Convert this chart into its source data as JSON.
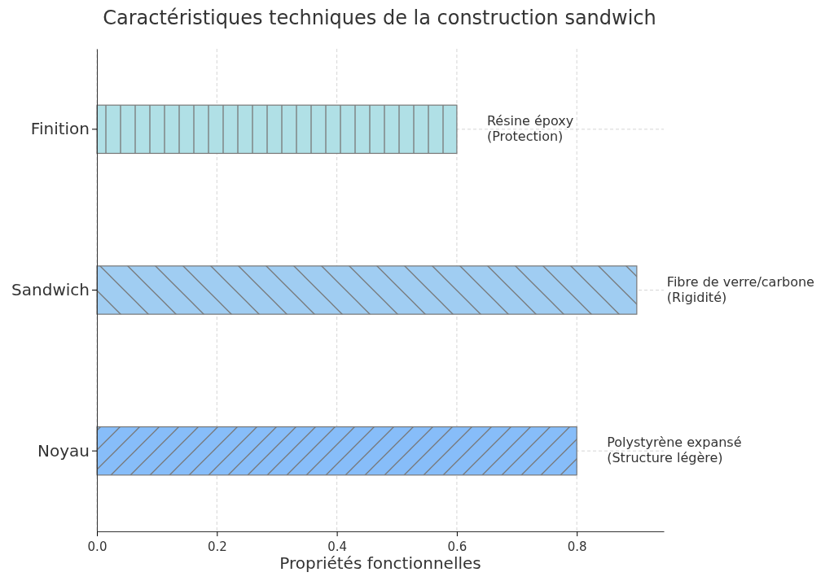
{
  "chart_data": {
    "type": "bar",
    "orientation": "horizontal",
    "title": "Caractéristiques techniques de la construction sandwich",
    "xlabel": "Propriétés fonctionnelles",
    "categories": [
      "Finition",
      "Sandwich",
      "Noyau"
    ],
    "values": [
      0.6,
      0.9,
      0.8
    ],
    "colors": [
      "#b0e0e6",
      "#a0cdf2",
      "#87bdf9"
    ],
    "xlim": [
      0,
      0.945
    ],
    "xticks": [
      {
        "value": 0,
        "label": "0.0"
      },
      {
        "value": 0.2,
        "label": "0.2"
      },
      {
        "value": 0.4,
        "label": "0.4"
      },
      {
        "value": 0.6,
        "label": "0.6"
      },
      {
        "value": 0.8,
        "label": "0.8"
      }
    ],
    "grid": true,
    "annotations": [
      "Résine époxy\n(Protection)",
      "Fibre de verre/carbone\n(Rigidité)",
      "Polystyrène expansé\n(Structure légère)"
    ]
  }
}
